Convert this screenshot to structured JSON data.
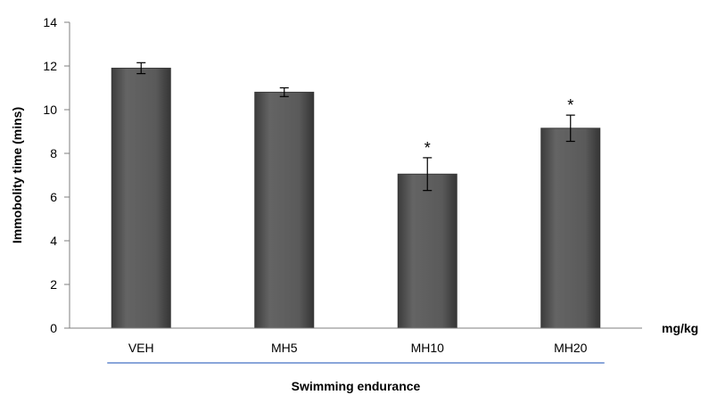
{
  "chart_data": {
    "type": "bar",
    "categories": [
      "VEH",
      "MH5",
      "MH10",
      "MH20"
    ],
    "values": [
      11.9,
      10.8,
      7.05,
      9.15
    ],
    "errors": [
      0.25,
      0.2,
      0.75,
      0.6
    ],
    "significance": [
      "",
      "",
      "*",
      "*"
    ],
    "title": "",
    "xlabel": "Swimming endurance",
    "ylabel": "Immobolity time (mins)",
    "x_unit_label": "mg/kg",
    "ylim": [
      0,
      14
    ],
    "yticks": [
      0,
      2,
      4,
      6,
      8,
      10,
      12,
      14
    ],
    "grid": false,
    "legend": "none",
    "colors": {
      "bar_fill": "#555555",
      "bar_edge": "#3a3a3a",
      "axis": "#7f7f7f",
      "underline": "#4472c4"
    }
  }
}
